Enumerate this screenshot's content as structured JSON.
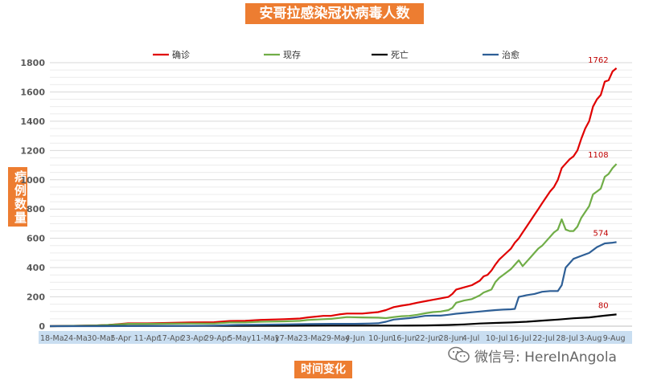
{
  "chart_data": {
    "type": "line",
    "title": "安哥拉感染冠状病毒人数",
    "xlabel": "时间变化",
    "ylabel": "病例数量",
    "ylim": [
      0,
      1800
    ],
    "yticks": [
      0,
      200,
      400,
      600,
      800,
      1000,
      1200,
      1400,
      1600,
      1800
    ],
    "ytick_labels": [
      "0",
      "200",
      "400",
      "600",
      "800",
      "1000",
      "1200",
      "1400",
      "1600",
      "1800"
    ],
    "x_tick_labels": [
      "18-Ma",
      "24-Ma",
      "30-Mar",
      "5-Apr",
      "11-Apr",
      "17-Apr",
      "23-Apr",
      "29-Apr",
      "5-May",
      "11-May",
      "17-Ma",
      "23-Ma",
      "29-May",
      "4-Jun",
      "10-Jun",
      "16-Jun",
      "22-Jun",
      "28-Jun",
      "4-Jul",
      "10-Jul",
      "16-Jul",
      "22-Jul",
      "28-Jul",
      "3-Aug",
      "9-Aug"
    ],
    "x_days": [
      0,
      6,
      12,
      18,
      24,
      30,
      36,
      42,
      48,
      54,
      60,
      66,
      72,
      78,
      84,
      90,
      96,
      102,
      108,
      114,
      120,
      126,
      132,
      138,
      144
    ],
    "x_range": [
      0,
      149
    ],
    "grid": true,
    "legend_position": "top",
    "series": [
      {
        "name": "确诊",
        "color": "#e00000",
        "end_label": "1762",
        "points": [
          [
            0,
            0
          ],
          [
            6,
            2
          ],
          [
            12,
            5
          ],
          [
            15,
            8
          ],
          [
            20,
            19
          ],
          [
            25,
            19
          ],
          [
            30,
            22
          ],
          [
            36,
            25
          ],
          [
            42,
            27
          ],
          [
            46,
            35
          ],
          [
            50,
            36
          ],
          [
            54,
            43
          ],
          [
            60,
            48
          ],
          [
            64,
            52
          ],
          [
            66,
            60
          ],
          [
            70,
            70
          ],
          [
            72,
            71
          ],
          [
            74,
            80
          ],
          [
            76,
            86
          ],
          [
            80,
            86
          ],
          [
            84,
            96
          ],
          [
            86,
            110
          ],
          [
            88,
            130
          ],
          [
            90,
            140
          ],
          [
            92,
            148
          ],
          [
            94,
            160
          ],
          [
            96,
            170
          ],
          [
            98,
            180
          ],
          [
            100,
            190
          ],
          [
            102,
            200
          ],
          [
            103,
            220
          ],
          [
            104,
            250
          ],
          [
            106,
            265
          ],
          [
            108,
            280
          ],
          [
            110,
            310
          ],
          [
            111,
            340
          ],
          [
            112,
            350
          ],
          [
            113,
            380
          ],
          [
            114,
            420
          ],
          [
            115,
            455
          ],
          [
            116,
            480
          ],
          [
            117,
            505
          ],
          [
            118,
            530
          ],
          [
            119,
            570
          ],
          [
            120,
            600
          ],
          [
            121,
            640
          ],
          [
            122,
            680
          ],
          [
            123,
            720
          ],
          [
            124,
            760
          ],
          [
            125,
            800
          ],
          [
            126,
            840
          ],
          [
            127,
            880
          ],
          [
            128,
            920
          ],
          [
            129,
            950
          ],
          [
            130,
            1000
          ],
          [
            131,
            1080
          ],
          [
            132,
            1110
          ],
          [
            133,
            1140
          ],
          [
            134,
            1160
          ],
          [
            135,
            1200
          ],
          [
            136,
            1280
          ],
          [
            137,
            1350
          ],
          [
            138,
            1400
          ],
          [
            139,
            1500
          ],
          [
            140,
            1550
          ],
          [
            141,
            1580
          ],
          [
            142,
            1670
          ],
          [
            143,
            1680
          ],
          [
            144,
            1740
          ],
          [
            145,
            1762
          ]
        ]
      },
      {
        "name": "现存",
        "color": "#70ad47",
        "end_label": "1108",
        "points": [
          [
            0,
            0
          ],
          [
            6,
            2
          ],
          [
            12,
            5
          ],
          [
            15,
            8
          ],
          [
            20,
            16
          ],
          [
            25,
            16
          ],
          [
            30,
            17
          ],
          [
            36,
            18
          ],
          [
            42,
            18
          ],
          [
            46,
            25
          ],
          [
            50,
            26
          ],
          [
            54,
            30
          ],
          [
            60,
            33
          ],
          [
            64,
            36
          ],
          [
            66,
            42
          ],
          [
            70,
            48
          ],
          [
            72,
            50
          ],
          [
            74,
            56
          ],
          [
            76,
            62
          ],
          [
            80,
            60
          ],
          [
            84,
            58
          ],
          [
            86,
            55
          ],
          [
            88,
            62
          ],
          [
            90,
            68
          ],
          [
            92,
            70
          ],
          [
            94,
            78
          ],
          [
            96,
            88
          ],
          [
            98,
            96
          ],
          [
            100,
            100
          ],
          [
            102,
            110
          ],
          [
            103,
            125
          ],
          [
            104,
            160
          ],
          [
            106,
            175
          ],
          [
            108,
            185
          ],
          [
            110,
            210
          ],
          [
            111,
            230
          ],
          [
            112,
            240
          ],
          [
            113,
            250
          ],
          [
            114,
            300
          ],
          [
            115,
            330
          ],
          [
            116,
            350
          ],
          [
            117,
            370
          ],
          [
            118,
            390
          ],
          [
            119,
            420
          ],
          [
            120,
            450
          ],
          [
            121,
            410
          ],
          [
            122,
            440
          ],
          [
            123,
            470
          ],
          [
            124,
            500
          ],
          [
            125,
            530
          ],
          [
            126,
            550
          ],
          [
            127,
            580
          ],
          [
            128,
            610
          ],
          [
            129,
            640
          ],
          [
            130,
            660
          ],
          [
            131,
            730
          ],
          [
            132,
            660
          ],
          [
            133,
            650
          ],
          [
            134,
            650
          ],
          [
            135,
            680
          ],
          [
            136,
            740
          ],
          [
            137,
            780
          ],
          [
            138,
            820
          ],
          [
            139,
            900
          ],
          [
            140,
            920
          ],
          [
            141,
            940
          ],
          [
            142,
            1020
          ],
          [
            143,
            1040
          ],
          [
            144,
            1080
          ],
          [
            145,
            1108
          ]
        ]
      },
      {
        "name": "死亡",
        "color": "#000000",
        "end_label": "80",
        "points": [
          [
            0,
            0
          ],
          [
            12,
            1
          ],
          [
            24,
            2
          ],
          [
            36,
            2
          ],
          [
            48,
            2
          ],
          [
            60,
            3
          ],
          [
            72,
            4
          ],
          [
            84,
            4
          ],
          [
            90,
            4
          ],
          [
            96,
            5
          ],
          [
            102,
            8
          ],
          [
            106,
            12
          ],
          [
            110,
            18
          ],
          [
            114,
            22
          ],
          [
            118,
            25
          ],
          [
            122,
            30
          ],
          [
            126,
            38
          ],
          [
            130,
            45
          ],
          [
            134,
            54
          ],
          [
            138,
            60
          ],
          [
            142,
            72
          ],
          [
            145,
            80
          ]
        ]
      },
      {
        "name": "治愈",
        "color": "#2e5f96",
        "end_label": "574",
        "points": [
          [
            0,
            0
          ],
          [
            12,
            0
          ],
          [
            24,
            1
          ],
          [
            36,
            2
          ],
          [
            42,
            4
          ],
          [
            48,
            8
          ],
          [
            54,
            10
          ],
          [
            60,
            12
          ],
          [
            66,
            14
          ],
          [
            72,
            16
          ],
          [
            78,
            16
          ],
          [
            82,
            18
          ],
          [
            84,
            20
          ],
          [
            86,
            30
          ],
          [
            88,
            45
          ],
          [
            90,
            50
          ],
          [
            92,
            55
          ],
          [
            94,
            62
          ],
          [
            96,
            70
          ],
          [
            98,
            72
          ],
          [
            100,
            72
          ],
          [
            102,
            78
          ],
          [
            104,
            85
          ],
          [
            106,
            90
          ],
          [
            108,
            95
          ],
          [
            110,
            100
          ],
          [
            112,
            105
          ],
          [
            114,
            110
          ],
          [
            116,
            113
          ],
          [
            118,
            115
          ],
          [
            119,
            118
          ],
          [
            120,
            200
          ],
          [
            121,
            205
          ],
          [
            122,
            212
          ],
          [
            124,
            220
          ],
          [
            126,
            235
          ],
          [
            128,
            240
          ],
          [
            130,
            240
          ],
          [
            131,
            280
          ],
          [
            132,
            400
          ],
          [
            133,
            430
          ],
          [
            134,
            460
          ],
          [
            136,
            480
          ],
          [
            138,
            500
          ],
          [
            140,
            540
          ],
          [
            142,
            565
          ],
          [
            144,
            570
          ],
          [
            145,
            574
          ]
        ]
      }
    ]
  },
  "watermark": {
    "icon": "wechat-icon",
    "text": "微信号: HereInAngola"
  }
}
